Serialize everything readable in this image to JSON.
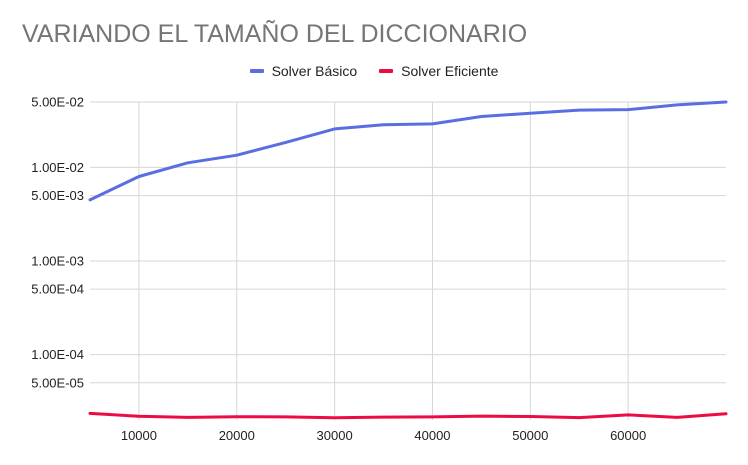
{
  "chart_data": {
    "type": "line",
    "title": "VARIANDO EL TAMAÑO DEL DICCIONARIO",
    "xlabel": "",
    "ylabel": "",
    "y_scale": "log",
    "xlim": [
      5000,
      70000
    ],
    "ylim": [
      2e-05,
      0.05
    ],
    "grid": true,
    "legend_position": "top-center",
    "x_ticks": [
      10000,
      20000,
      30000,
      40000,
      50000,
      60000
    ],
    "x_tick_labels": [
      "10000",
      "20000",
      "30000",
      "40000",
      "50000",
      "60000"
    ],
    "y_ticks": [
      0.05,
      0.01,
      0.005,
      0.001,
      0.0005,
      0.0001,
      5e-05
    ],
    "y_tick_labels": [
      "5.00E-02",
      "1.00E-02",
      "5.00E-03",
      "1.00E-03",
      "5.00E-04",
      "1.00E-04",
      "5.00E-05"
    ],
    "series": [
      {
        "name": "Solver Básico",
        "color": "#5b6ee1",
        "x": [
          5000,
          10000,
          15000,
          20000,
          25000,
          30000,
          35000,
          40000,
          45000,
          50000,
          55000,
          60000,
          65000,
          70000
        ],
        "values": [
          0.0045,
          0.008,
          0.0112,
          0.0135,
          0.0185,
          0.0258,
          0.0285,
          0.0292,
          0.035,
          0.038,
          0.041,
          0.0415,
          0.0465,
          0.05
        ]
      },
      {
        "name": "Solver Eficiente",
        "color": "#ec0b43",
        "x": [
          5000,
          10000,
          15000,
          20000,
          25000,
          30000,
          35000,
          40000,
          45000,
          50000,
          55000,
          60000,
          65000,
          70000
        ],
        "values": [
          2.35e-05,
          2.19e-05,
          2.13e-05,
          2.17e-05,
          2.16e-05,
          2.11e-05,
          2.15e-05,
          2.16e-05,
          2.2e-05,
          2.18e-05,
          2.12e-05,
          2.27e-05,
          2.13e-05,
          2.33e-05
        ]
      }
    ]
  }
}
